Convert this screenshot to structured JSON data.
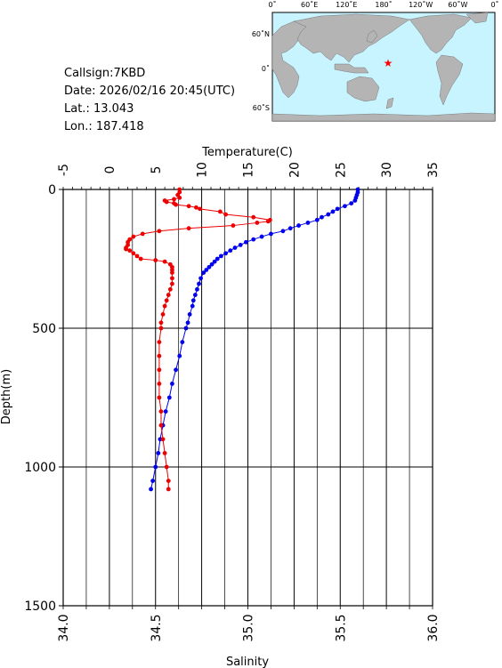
{
  "station": {
    "callsign": "Callsign:7KBD",
    "date": "Date:  2026/02/16 20:45(UTC)",
    "lat": "Lat.:  13.043",
    "lon": "Lon.:  187.418"
  },
  "map": {
    "lon_labels": [
      "0˚",
      "60˚E",
      "120˚E",
      "180˚",
      "120˚W",
      "60˚W",
      "0˚"
    ],
    "lat_labels": [
      "60˚N",
      "0˚",
      "60˚S"
    ],
    "station_lat": 13.043,
    "station_lon": 187.418,
    "ocean_color": "#c8f4ff",
    "land_color": "#b4b4b4",
    "marker_color": "#ff0000"
  },
  "chart_data": {
    "type": "line",
    "ylabel": "Depth(m)",
    "ylim": [
      0,
      1500
    ],
    "y_ticks": [
      "0",
      "500",
      "1000",
      "1500"
    ],
    "top_axis": {
      "label": "Temperature(C)",
      "range": [
        -5,
        35
      ],
      "ticks": [
        "-5",
        "0",
        "5",
        "10",
        "15",
        "20",
        "25",
        "30",
        "35"
      ]
    },
    "bottom_axis": {
      "label": "Salinity",
      "range": [
        34.0,
        36.0
      ],
      "ticks": [
        "34.0",
        "34.5",
        "35.0",
        "35.5",
        "36.0"
      ]
    },
    "grid": true,
    "series": [
      {
        "name": "Temperature(C)",
        "color": "#0000ee",
        "depth": [
          0,
          10,
          20,
          30,
          40,
          50,
          60,
          70,
          80,
          90,
          100,
          110,
          120,
          130,
          140,
          150,
          160,
          170,
          180,
          190,
          200,
          210,
          220,
          230,
          240,
          250,
          260,
          270,
          280,
          290,
          300,
          320,
          340,
          360,
          380,
          400,
          420,
          450,
          480,
          500,
          550,
          600,
          650,
          700,
          750,
          800,
          850,
          900,
          950,
          1000,
          1050,
          1080
        ],
        "values": [
          26.9,
          26.9,
          26.8,
          26.7,
          26.6,
          26.2,
          25.5,
          24.7,
          24.2,
          23.7,
          23.0,
          22.5,
          21.5,
          20.5,
          19.6,
          18.8,
          17.5,
          16.5,
          15.6,
          14.8,
          14.2,
          13.6,
          13.1,
          12.6,
          12.1,
          11.7,
          11.4,
          11.1,
          10.8,
          10.5,
          10.2,
          9.9,
          9.7,
          9.5,
          9.3,
          9.1,
          9.0,
          8.7,
          8.5,
          8.3,
          7.9,
          7.6,
          7.2,
          6.8,
          6.5,
          6.1,
          5.8,
          5.5,
          5.3,
          5.0,
          4.7,
          4.5
        ]
      },
      {
        "name": "Salinity",
        "color": "#ee0000",
        "depth": [
          0,
          10,
          20,
          30,
          35,
          40,
          45,
          50,
          55,
          60,
          65,
          70,
          80,
          90,
          100,
          110,
          115,
          120,
          130,
          140,
          150,
          160,
          170,
          180,
          190,
          200,
          210,
          215,
          220,
          230,
          240,
          250,
          255,
          260,
          270,
          280,
          290,
          300,
          320,
          340,
          360,
          380,
          400,
          420,
          450,
          480,
          500,
          550,
          600,
          650,
          700,
          750,
          800,
          850,
          900,
          950,
          1000,
          1050,
          1080
        ],
        "values": [
          34.63,
          34.63,
          34.62,
          34.63,
          34.6,
          34.55,
          34.56,
          34.6,
          34.61,
          34.68,
          34.72,
          34.74,
          34.85,
          34.88,
          35.03,
          35.12,
          35.11,
          35.05,
          34.92,
          34.68,
          34.52,
          34.43,
          34.38,
          34.36,
          34.35,
          34.35,
          34.34,
          34.34,
          34.36,
          34.38,
          34.4,
          34.42,
          34.5,
          34.55,
          34.58,
          34.59,
          34.59,
          34.59,
          34.59,
          34.59,
          34.58,
          34.57,
          34.56,
          34.55,
          34.54,
          34.53,
          34.53,
          34.52,
          34.52,
          34.52,
          34.52,
          34.52,
          34.53,
          34.53,
          34.54,
          34.55,
          34.56,
          34.57,
          34.57
        ]
      }
    ]
  }
}
